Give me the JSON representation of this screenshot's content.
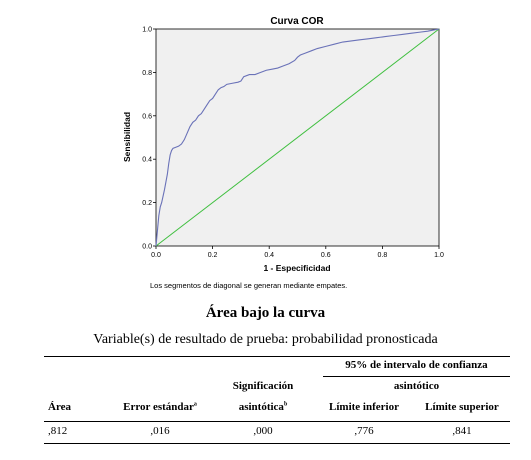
{
  "chart_data": {
    "type": "line",
    "title": "Curva COR",
    "xlabel": "1 - Especificidad",
    "ylabel": "Sensibilidad",
    "xlim": [
      0,
      1
    ],
    "ylim": [
      0,
      1
    ],
    "x_ticks": [
      "0.0",
      "0.2",
      "0.4",
      "0.6",
      "0.8",
      "1.0"
    ],
    "y_ticks": [
      "0.0",
      "0.2",
      "0.4",
      "0.6",
      "0.8",
      "1.0"
    ],
    "grid": false,
    "legend": "none",
    "footnote": "Los segmentos de diagonal se generan mediante empates.",
    "background_color": "#f0f0f0",
    "series": [
      {
        "role": "roc-curve",
        "color": "#6a72b8",
        "x": [
          0,
          0.005,
          0.01,
          0.015,
          0.02,
          0.03,
          0.04,
          0.045,
          0.05,
          0.055,
          0.06,
          0.07,
          0.08,
          0.09,
          0.1,
          0.11,
          0.12,
          0.13,
          0.14,
          0.15,
          0.16,
          0.17,
          0.18,
          0.19,
          0.2,
          0.21,
          0.22,
          0.23,
          0.24,
          0.25,
          0.27,
          0.29,
          0.3,
          0.31,
          0.33,
          0.35,
          0.37,
          0.39,
          0.41,
          0.43,
          0.45,
          0.47,
          0.49,
          0.5,
          0.51,
          0.53,
          0.55,
          0.57,
          0.6,
          0.63,
          0.66,
          0.69,
          0.72,
          0.75,
          0.78,
          0.81,
          0.84,
          0.87,
          0.9,
          0.93,
          0.96,
          0.98,
          1.0
        ],
        "y": [
          0,
          0.07,
          0.14,
          0.18,
          0.2,
          0.26,
          0.33,
          0.38,
          0.42,
          0.44,
          0.45,
          0.455,
          0.46,
          0.47,
          0.49,
          0.52,
          0.55,
          0.57,
          0.58,
          0.6,
          0.61,
          0.63,
          0.65,
          0.67,
          0.68,
          0.7,
          0.72,
          0.73,
          0.735,
          0.745,
          0.75,
          0.755,
          0.76,
          0.78,
          0.79,
          0.79,
          0.8,
          0.81,
          0.815,
          0.82,
          0.83,
          0.84,
          0.855,
          0.87,
          0.88,
          0.89,
          0.9,
          0.91,
          0.92,
          0.93,
          0.94,
          0.945,
          0.95,
          0.955,
          0.96,
          0.965,
          0.97,
          0.975,
          0.98,
          0.985,
          0.99,
          0.995,
          1.0
        ]
      },
      {
        "role": "reference-diagonal",
        "color": "#3fbf3f",
        "x": [
          0,
          1
        ],
        "y": [
          0,
          1
        ]
      }
    ]
  },
  "table": {
    "title": "Área bajo la curva",
    "subtitle": "Variable(s) de resultado de prueba: probabilidad pronosticada",
    "group_header_line1": "95% de intervalo de confianza",
    "group_header_line2": "asintótico",
    "col_area": "Área",
    "col_error": "Error estándar",
    "col_error_sup": "a",
    "col_sig_line1": "Significación",
    "col_sig_line2": "asintótica",
    "col_sig_sup": "b",
    "col_lower": "Límite inferior",
    "col_upper": "Límite superior",
    "row": {
      "area": ",812",
      "error": ",016",
      "sig": ",000",
      "lower": ",776",
      "upper": ",841"
    }
  }
}
